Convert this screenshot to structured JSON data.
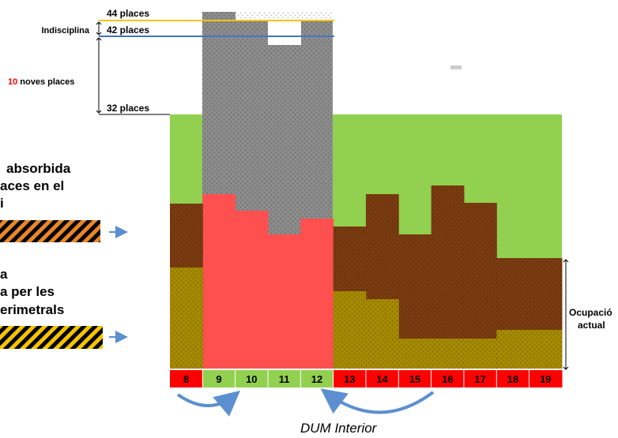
{
  "colors": {
    "green": "#92d050",
    "salmon": "#ff5050",
    "brown": "#7a3b10",
    "olive": "#a58a00",
    "gray": "#8c8c8c",
    "red_hour": "#ff0000",
    "green_hour": "#92d050",
    "line_44": "#f5c400",
    "line_42": "#4472c4",
    "arrow": "#5b8fd0",
    "text_red": "#ff0000"
  },
  "scale": {
    "label_44": "44 places",
    "label_42": "42 places",
    "label_32": "32 places",
    "indisciplina": "Indisciplina",
    "noves_number": "10",
    "noves_text": " noves places"
  },
  "left_text": {
    "line1": "absorbida",
    "line2": "aces en el",
    "line3": "i",
    "line4": "a",
    "line5": "a per les",
    "line6": "erimetrals"
  },
  "ocupacio": {
    "line1": "Ocupació",
    "line2": "actual"
  },
  "dum_label": "DUM Interior",
  "hours": [
    {
      "label": "8",
      "band": "red"
    },
    {
      "label": "9",
      "band": "green"
    },
    {
      "label": "10",
      "band": "green"
    },
    {
      "label": "11",
      "band": "green"
    },
    {
      "label": "12",
      "band": "green"
    },
    {
      "label": "13",
      "band": "red"
    },
    {
      "label": "14",
      "band": "red"
    },
    {
      "label": "15",
      "band": "red"
    },
    {
      "label": "16",
      "band": "red"
    },
    {
      "label": "17",
      "band": "red"
    },
    {
      "label": "18",
      "band": "red"
    },
    {
      "label": "19",
      "band": "red"
    }
  ]
}
